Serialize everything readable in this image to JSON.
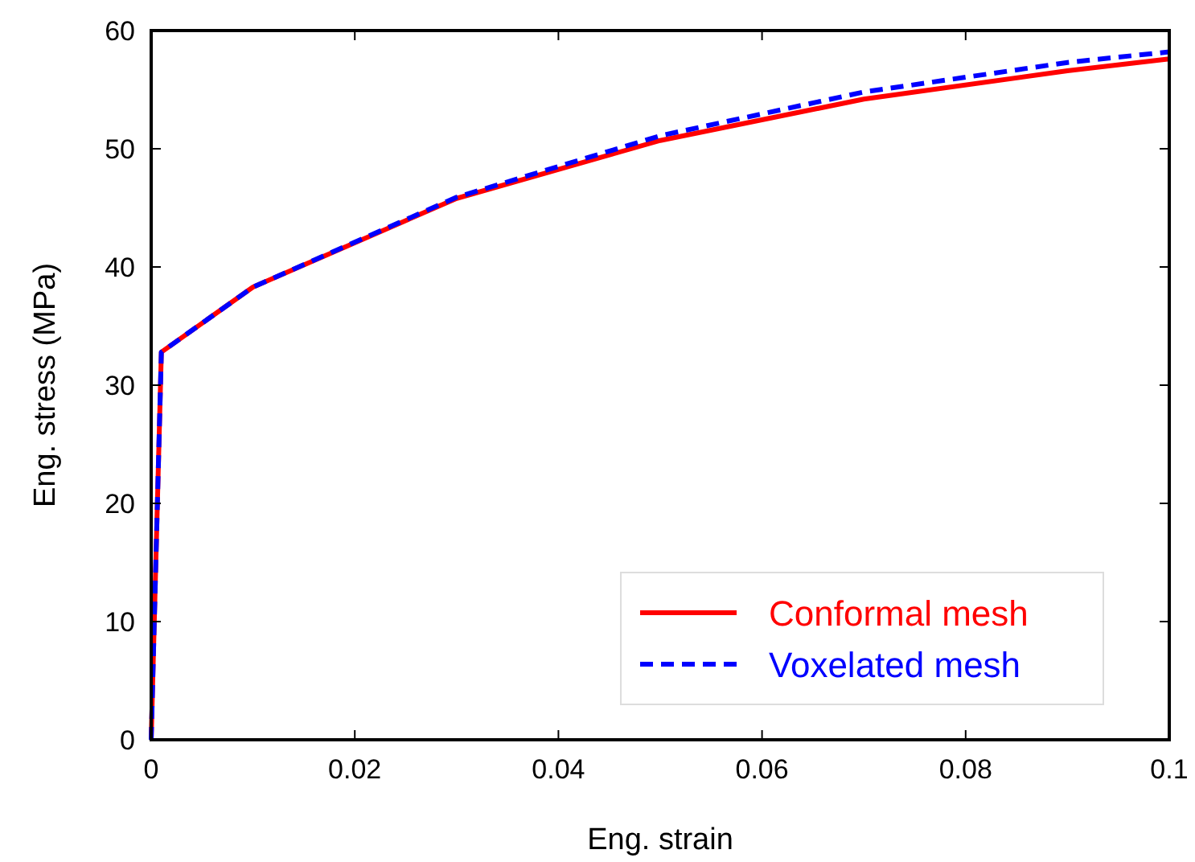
{
  "chart_data": {
    "type": "line",
    "xlabel": "Eng. strain",
    "ylabel": "Eng. stress (MPa)",
    "xlim": [
      0,
      0.1
    ],
    "ylim": [
      0,
      60
    ],
    "xticks": [
      0,
      0.02,
      0.04,
      0.06,
      0.08,
      0.1
    ],
    "yticks": [
      0,
      10,
      20,
      30,
      40,
      50,
      60
    ],
    "legend": "bottom right",
    "grid": false,
    "series": [
      {
        "name": "Conformal mesh",
        "color": "#ff0000",
        "line_style": "solid",
        "x": [
          0,
          0.001,
          0.01,
          0.03,
          0.05,
          0.07,
          0.09,
          0.1
        ],
        "values": [
          0,
          32.8,
          38.3,
          45.8,
          50.7,
          54.2,
          56.6,
          57.6
        ]
      },
      {
        "name": "Voxelated mesh",
        "color": "#0000ff",
        "line_style": "dashed",
        "x": [
          0,
          0.001,
          0.01,
          0.03,
          0.05,
          0.07,
          0.09,
          0.1
        ],
        "values": [
          0,
          32.8,
          38.3,
          45.9,
          51.1,
          54.8,
          57.3,
          58.2
        ]
      }
    ]
  }
}
